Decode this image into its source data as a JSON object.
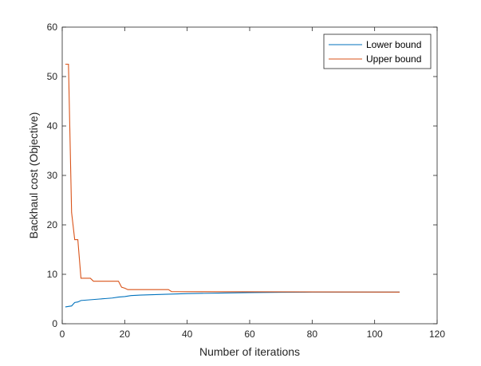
{
  "chart_data": {
    "type": "line",
    "title": "",
    "xlabel": "Number of iterations",
    "ylabel": "Backhaul cost (Objective)",
    "xlim": [
      0,
      120
    ],
    "ylim": [
      0,
      60
    ],
    "xticks": [
      0,
      20,
      40,
      60,
      80,
      100,
      120
    ],
    "yticks": [
      0,
      10,
      20,
      30,
      40,
      50,
      60
    ],
    "grid": false,
    "legend_position": "top-right",
    "series": [
      {
        "name": "Lower bound",
        "color": "#0072BD",
        "x": [
          1,
          2,
          3,
          4,
          5,
          6,
          8,
          10,
          12,
          14,
          16,
          18,
          20,
          22,
          25,
          30,
          35,
          40,
          50,
          60,
          70,
          80,
          90,
          100,
          108
        ],
        "y": [
          3.4,
          3.5,
          3.6,
          4.3,
          4.4,
          4.7,
          4.8,
          4.9,
          5.0,
          5.1,
          5.2,
          5.4,
          5.5,
          5.7,
          5.8,
          5.9,
          6.0,
          6.1,
          6.2,
          6.3,
          6.35,
          6.4,
          6.4,
          6.4,
          6.4
        ]
      },
      {
        "name": "Upper bound",
        "color": "#D95319",
        "x": [
          1,
          2,
          3,
          4,
          5,
          6,
          9,
          10,
          18,
          19,
          20,
          21,
          34,
          35,
          108
        ],
        "y": [
          52.5,
          52.5,
          22.5,
          17.0,
          17.0,
          9.2,
          9.2,
          8.6,
          8.6,
          7.4,
          7.2,
          6.9,
          6.9,
          6.5,
          6.4
        ]
      }
    ]
  }
}
